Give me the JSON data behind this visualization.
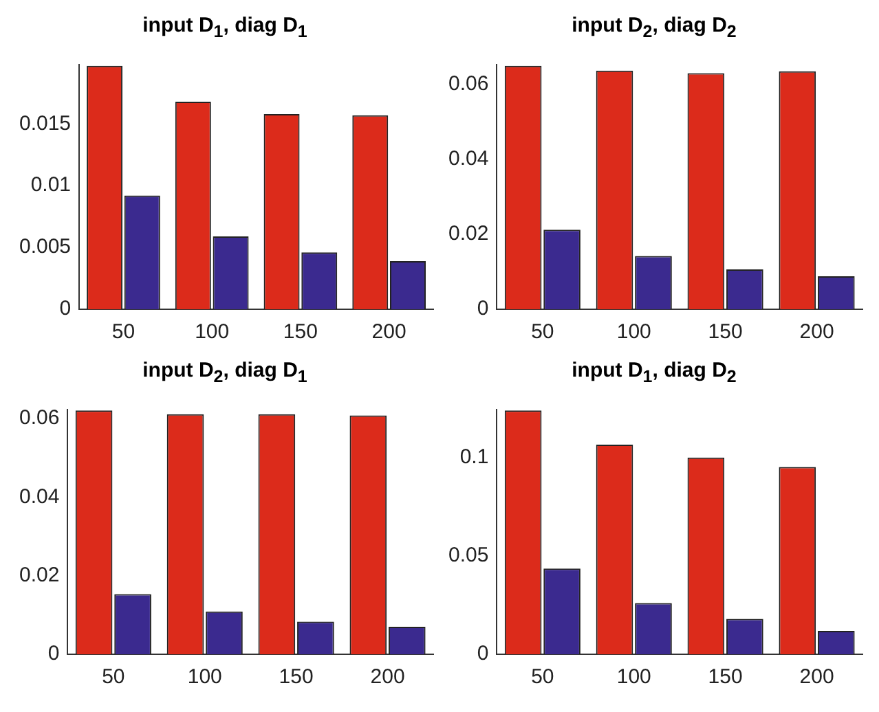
{
  "chart_data": [
    {
      "type": "bar",
      "title": "input D$_{1}$, diag D$_{1}$",
      "categories": [
        "50",
        "100",
        "150",
        "200"
      ],
      "series": [
        {
          "color": "#dc2b1b",
          "values": [
            0.0197,
            0.0168,
            0.0158,
            0.0157
          ]
        },
        {
          "color": "#3b2a8f",
          "values": [
            0.0092,
            0.0059,
            0.0046,
            0.0039
          ]
        }
      ],
      "ylim": [
        0,
        0.0198
      ],
      "yticks": [
        0,
        0.005,
        0.01,
        0.015
      ],
      "grid": false,
      "legend": false
    },
    {
      "type": "bar",
      "title": "input D$_{2}$, diag D$_{2}$",
      "categories": [
        "50",
        "100",
        "150",
        "200"
      ],
      "series": [
        {
          "color": "#dc2b1b",
          "values": [
            0.0649,
            0.0636,
            0.0629,
            0.0634
          ]
        },
        {
          "color": "#3b2a8f",
          "values": [
            0.0212,
            0.0142,
            0.0106,
            0.0088
          ]
        }
      ],
      "ylim": [
        0,
        0.0652
      ],
      "yticks": [
        0,
        0.02,
        0.04,
        0.06
      ],
      "grid": false,
      "legend": false
    },
    {
      "type": "bar",
      "title": "input D$_{2}$, diag D$_{1}$",
      "categories": [
        "50",
        "100",
        "150",
        "200"
      ],
      "series": [
        {
          "color": "#dc2b1b",
          "values": [
            0.0621,
            0.0611,
            0.0611,
            0.0608
          ]
        },
        {
          "color": "#3b2a8f",
          "values": [
            0.0153,
            0.0109,
            0.0083,
            0.007
          ]
        }
      ],
      "ylim": [
        0,
        0.0623
      ],
      "yticks": [
        0,
        0.02,
        0.04,
        0.06
      ],
      "grid": false,
      "legend": false
    },
    {
      "type": "bar",
      "title": "input D$_{1}$, diag D$_{2}$",
      "categories": [
        "50",
        "100",
        "150",
        "200"
      ],
      "series": [
        {
          "color": "#dc2b1b",
          "values": [
            0.124,
            0.1066,
            0.1,
            0.0952
          ]
        },
        {
          "color": "#3b2a8f",
          "values": [
            0.0436,
            0.026,
            0.018,
            0.0119
          ]
        }
      ],
      "ylim": [
        0,
        0.1244
      ],
      "yticks": [
        0,
        0.05,
        0.1
      ],
      "grid": false,
      "legend": false
    }
  ]
}
